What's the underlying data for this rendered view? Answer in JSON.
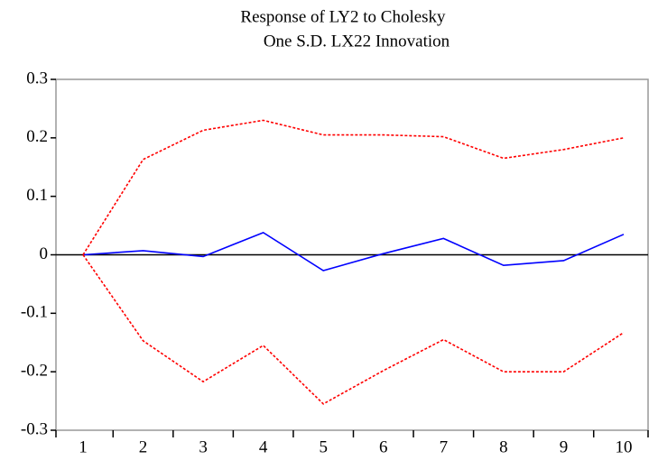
{
  "chart_data": {
    "type": "line",
    "title": [
      "Response of LY2 to Cholesky",
      "One S.D. LX22 Innovation"
    ],
    "categories": [
      "1",
      "2",
      "3",
      "4",
      "5",
      "6",
      "7",
      "8",
      "9",
      "10"
    ],
    "series": [
      {
        "color": "#0000ff",
        "dash": false,
        "values": [
          0,
          0.007,
          -0.003,
          0.038,
          -0.027,
          0.002,
          0.028,
          -0.018,
          -0.01,
          0.035
        ]
      },
      {
        "color": "#ff0000",
        "dash": true,
        "values": [
          0,
          0.163,
          0.213,
          0.23,
          0.205,
          0.205,
          0.202,
          0.165,
          0.18,
          0.2
        ]
      },
      {
        "color": "#ff0000",
        "dash": true,
        "values": [
          0,
          -0.147,
          -0.217,
          -0.155,
          -0.255,
          -0.198,
          -0.145,
          -0.2,
          -0.2,
          -0.133
        ]
      }
    ],
    "ylim": [
      -0.3,
      0.3
    ],
    "yticks": [
      -0.3,
      -0.2,
      -0.1,
      0,
      0.1,
      0.2,
      0.3
    ],
    "zero_line": true
  }
}
